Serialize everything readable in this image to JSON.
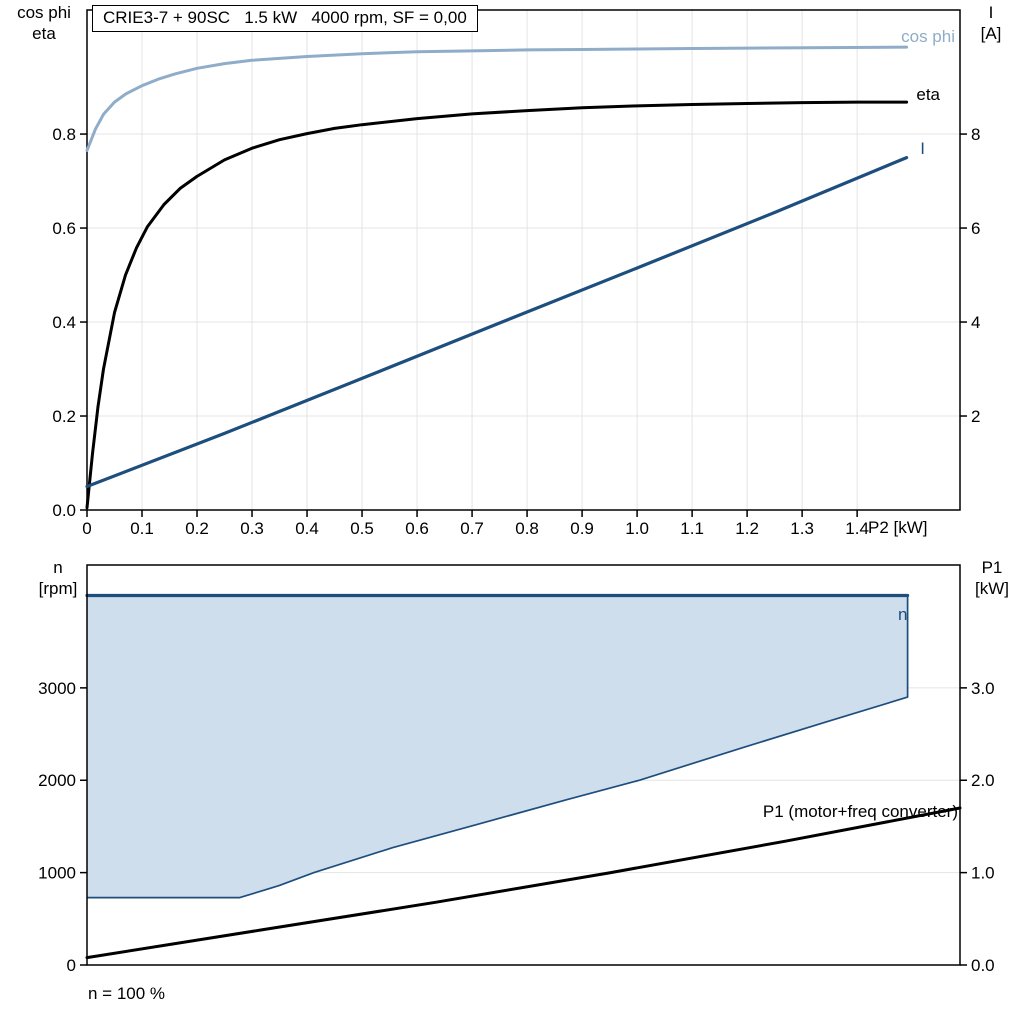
{
  "colors": {
    "frame": "#000000",
    "grid": "#e4e4e4",
    "tick": "#000000",
    "blue": "#1d4e7e",
    "light_blue": "#8fadc9",
    "envelope_fill": "#cfdeec"
  },
  "chart_data": [
    {
      "type": "line",
      "title": "CRIE3-7 + 90SC   1.5 kW   4000 rpm, SF = 0,00",
      "x_axis": {
        "label": "P2 [kW]",
        "range": [
          0,
          1.587
        ],
        "tick_values": [
          0,
          0.1,
          0.2,
          0.3,
          0.4,
          0.5,
          0.6,
          0.7,
          0.8,
          0.9,
          1.0,
          1.1,
          1.2,
          1.3,
          1.4
        ],
        "ticks": [
          "0",
          "0.1",
          "0.2",
          "0.3",
          "0.4",
          "0.5",
          "0.6",
          "0.7",
          "0.8",
          "0.9",
          "1.0",
          "1.1",
          "1.2",
          "1.3",
          "1.4"
        ]
      },
      "left_axis": {
        "title_lines": [
          "cos phi",
          "eta"
        ],
        "range": [
          0,
          1.064
        ],
        "tick_values": [
          0,
          0.2,
          0.4,
          0.6,
          0.8
        ],
        "ticks": [
          "0.0",
          "0.2",
          "0.4",
          "0.6",
          "0.8"
        ]
      },
      "right_axis": {
        "title_lines": [
          "I",
          "[A]"
        ],
        "range": [
          0,
          10.64
        ],
        "tick_values": [
          2,
          4,
          6,
          8
        ],
        "ticks": [
          "2",
          "4",
          "6",
          "8"
        ]
      },
      "grid": true,
      "series": [
        {
          "name": "cos phi",
          "label": "cos phi",
          "axis": "left",
          "color": "#8fadc9",
          "width": 3,
          "points": [
            [
              0,
              0.765
            ],
            [
              0.015,
              0.81
            ],
            [
              0.03,
              0.842
            ],
            [
              0.05,
              0.868
            ],
            [
              0.07,
              0.885
            ],
            [
              0.1,
              0.903
            ],
            [
              0.13,
              0.917
            ],
            [
              0.16,
              0.928
            ],
            [
              0.2,
              0.94
            ],
            [
              0.25,
              0.95
            ],
            [
              0.3,
              0.957
            ],
            [
              0.4,
              0.965
            ],
            [
              0.5,
              0.971
            ],
            [
              0.6,
              0.975
            ],
            [
              0.7,
              0.977
            ],
            [
              0.8,
              0.979
            ],
            [
              0.9,
              0.98
            ],
            [
              1.0,
              0.981
            ],
            [
              1.1,
              0.982
            ],
            [
              1.2,
              0.983
            ],
            [
              1.35,
              0.984
            ],
            [
              1.49,
              0.985
            ]
          ]
        },
        {
          "name": "eta",
          "label": "eta",
          "axis": "left",
          "color": "#000000",
          "width": 3,
          "points": [
            [
              0,
              0.005
            ],
            [
              0.01,
              0.12
            ],
            [
              0.02,
              0.22
            ],
            [
              0.03,
              0.3
            ],
            [
              0.05,
              0.42
            ],
            [
              0.07,
              0.5
            ],
            [
              0.09,
              0.558
            ],
            [
              0.11,
              0.603
            ],
            [
              0.14,
              0.65
            ],
            [
              0.17,
              0.685
            ],
            [
              0.2,
              0.71
            ],
            [
              0.25,
              0.745
            ],
            [
              0.3,
              0.77
            ],
            [
              0.35,
              0.788
            ],
            [
              0.4,
              0.801
            ],
            [
              0.45,
              0.812
            ],
            [
              0.5,
              0.82
            ],
            [
              0.6,
              0.833
            ],
            [
              0.7,
              0.843
            ],
            [
              0.8,
              0.85
            ],
            [
              0.9,
              0.856
            ],
            [
              1.0,
              0.86
            ],
            [
              1.1,
              0.863
            ],
            [
              1.2,
              0.865
            ],
            [
              1.3,
              0.867
            ],
            [
              1.4,
              0.868
            ],
            [
              1.49,
              0.868
            ]
          ]
        },
        {
          "name": "I",
          "label": "I",
          "axis": "right",
          "color": "#1d4e7e",
          "width": 3.2,
          "points": [
            [
              0,
              0.5
            ],
            [
              0.25,
              1.63
            ],
            [
              0.5,
              2.8
            ],
            [
              0.75,
              3.98
            ],
            [
              1.0,
              5.15
            ],
            [
              1.25,
              6.33
            ],
            [
              1.49,
              7.5
            ]
          ]
        }
      ]
    },
    {
      "type": "area",
      "x_axis": {
        "range": [
          0,
          1
        ]
      },
      "left_axis": {
        "title_lines": [
          "n",
          "[rpm]"
        ],
        "range": [
          0,
          4330
        ],
        "tick_values": [
          0,
          1000,
          2000,
          3000
        ],
        "ticks": [
          "0",
          "1000",
          "2000",
          "3000"
        ]
      },
      "right_axis": {
        "title_lines": [
          "P1",
          "[kW]"
        ],
        "range": [
          0,
          4.33
        ],
        "tick_values": [
          0,
          1,
          2,
          3
        ],
        "ticks": [
          "0.0",
          "1.0",
          "2.0",
          "3.0"
        ]
      },
      "grid": true,
      "envelope": {
        "label": "n",
        "fill": "#cfdeec",
        "stroke": "#1d4e7e",
        "top_rpm": 4000,
        "points_rpm": [
          [
            0,
            4000
          ],
          [
            0.94,
            4000
          ],
          [
            0.94,
            2900
          ],
          [
            0.85,
            2640
          ],
          [
            0.75,
            2350
          ],
          [
            0.633,
            2000
          ],
          [
            0.55,
            1790
          ],
          [
            0.45,
            1530
          ],
          [
            0.35,
            1270
          ],
          [
            0.26,
            1000
          ],
          [
            0.22,
            860
          ],
          [
            0.175,
            730
          ],
          [
            0,
            730
          ]
        ]
      },
      "p1_curve": {
        "label": "P1 (motor+freq converter)",
        "color": "#000000",
        "width": 3,
        "points_kw": [
          [
            0,
            0.08
          ],
          [
            0.2,
            0.38
          ],
          [
            0.4,
            0.68
          ],
          [
            0.6,
            1.0
          ],
          [
            0.8,
            1.34
          ],
          [
            1.0,
            1.7
          ]
        ]
      },
      "footnote": "n = 100 %"
    }
  ]
}
